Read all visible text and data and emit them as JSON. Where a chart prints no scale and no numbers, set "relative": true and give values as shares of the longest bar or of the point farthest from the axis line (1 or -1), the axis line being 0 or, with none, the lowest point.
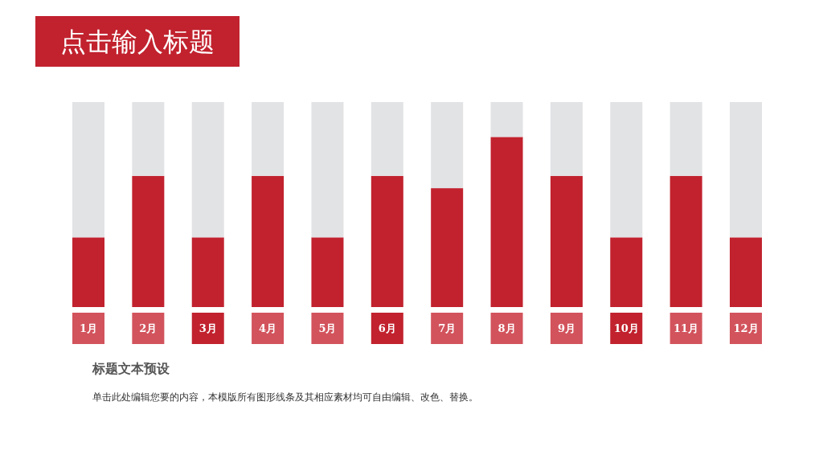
{
  "chart_data": {
    "type": "bar",
    "title": "点击输入标题",
    "subtitle": "标题文本预设",
    "annotations": [
      "单击此处编辑您要的内容，本模版所有图形线条及其相应素材均可自由编辑、改色、替换。"
    ],
    "categories": [
      "1月",
      "2月",
      "3月",
      "4月",
      "5月",
      "6月",
      "7月",
      "8月",
      "9月",
      "10月",
      "11月",
      "12月"
    ],
    "stacked": true,
    "relative": true,
    "series": [
      {
        "color": "#c1222e",
        "values": [
          0.34,
          0.64,
          0.34,
          0.64,
          0.34,
          0.64,
          0.58,
          0.83,
          0.64,
          0.34,
          0.64,
          0.34
        ]
      },
      {
        "color": "#e2e3e5",
        "values": [
          0.66,
          0.36,
          0.66,
          0.36,
          0.66,
          0.36,
          0.42,
          0.17,
          0.36,
          0.66,
          0.36,
          0.66
        ]
      }
    ]
  }
}
